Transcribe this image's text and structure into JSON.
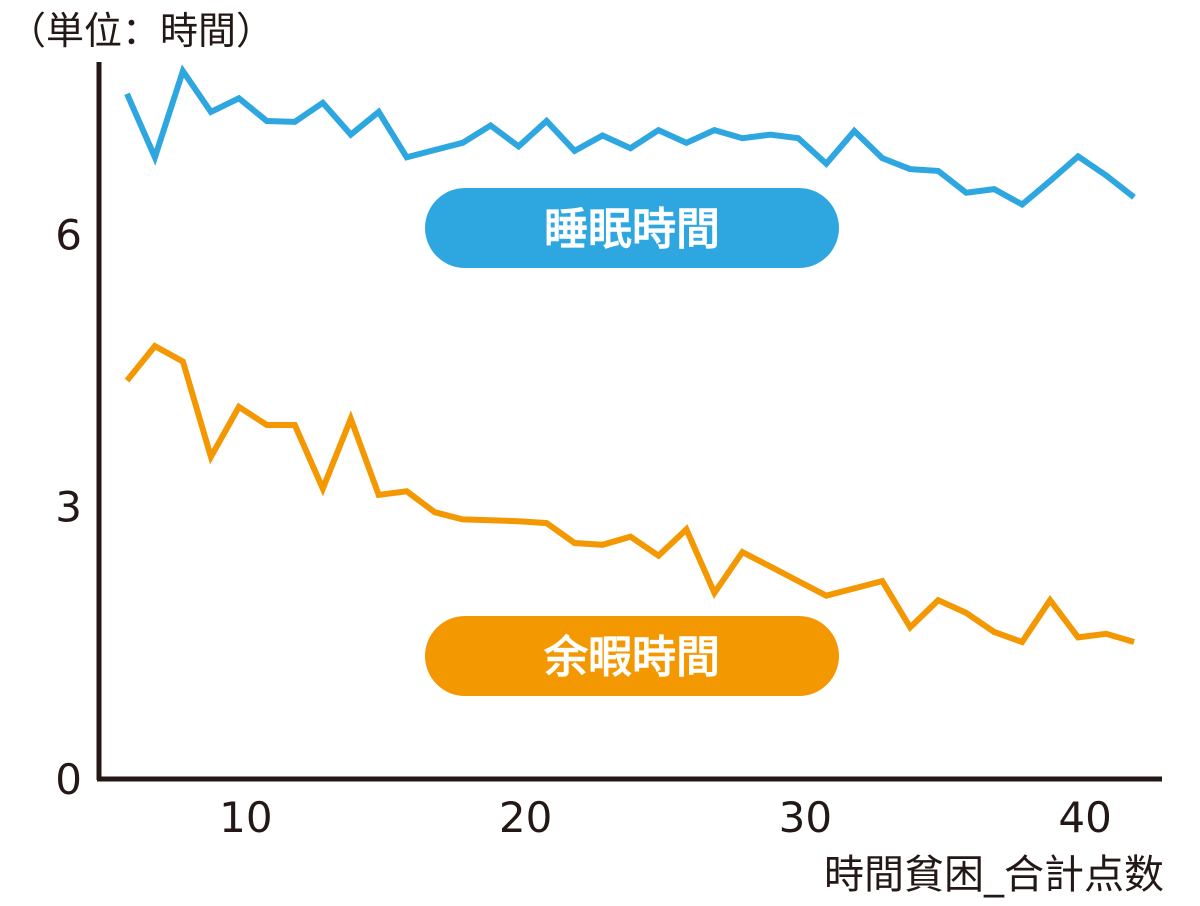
{
  "chart_data": {
    "type": "line",
    "unit_label": "（単位：時間）",
    "xlabel": "時間貧困_合計点数",
    "ylabel": "",
    "xlim": [
      5,
      43
    ],
    "ylim": [
      0,
      7.9
    ],
    "x_ticks": [
      10,
      20,
      30,
      40
    ],
    "y_ticks": [
      0,
      3,
      6
    ],
    "grid": false,
    "x": [
      6,
      7,
      8,
      9,
      10,
      11,
      12,
      13,
      14,
      15,
      16,
      17,
      18,
      19,
      20,
      21,
      22,
      23,
      24,
      25,
      26,
      27,
      28,
      29,
      30,
      31,
      32,
      33,
      34,
      35,
      36,
      37,
      38,
      39,
      40,
      41,
      42
    ],
    "series": [
      {
        "name": "睡眠時間",
        "color": "#2ea7e0",
        "values": [
          7.55,
          6.85,
          7.8,
          7.35,
          7.5,
          7.25,
          7.24,
          7.45,
          7.1,
          7.35,
          6.85,
          6.93,
          7.01,
          7.2,
          6.97,
          7.25,
          6.92,
          7.09,
          6.95,
          7.15,
          7.01,
          7.15,
          7.06,
          7.1,
          7.06,
          6.78,
          7.14,
          6.84,
          6.72,
          6.7,
          6.46,
          6.5,
          6.33,
          6.59,
          6.86,
          6.65,
          6.41
        ]
      },
      {
        "name": "余暇時間",
        "color": "#f39800",
        "values": [
          4.39,
          4.77,
          4.6,
          3.55,
          4.1,
          3.9,
          3.9,
          3.2,
          3.97,
          3.13,
          3.17,
          2.94,
          2.86,
          2.85,
          2.84,
          2.82,
          2.6,
          2.58,
          2.67,
          2.46,
          2.75,
          2.05,
          2.5,
          2.34,
          2.18,
          2.02,
          2.1,
          2.18,
          1.67,
          1.97,
          1.83,
          1.62,
          1.51,
          1.97,
          1.56,
          1.6,
          1.51
        ]
      }
    ]
  }
}
